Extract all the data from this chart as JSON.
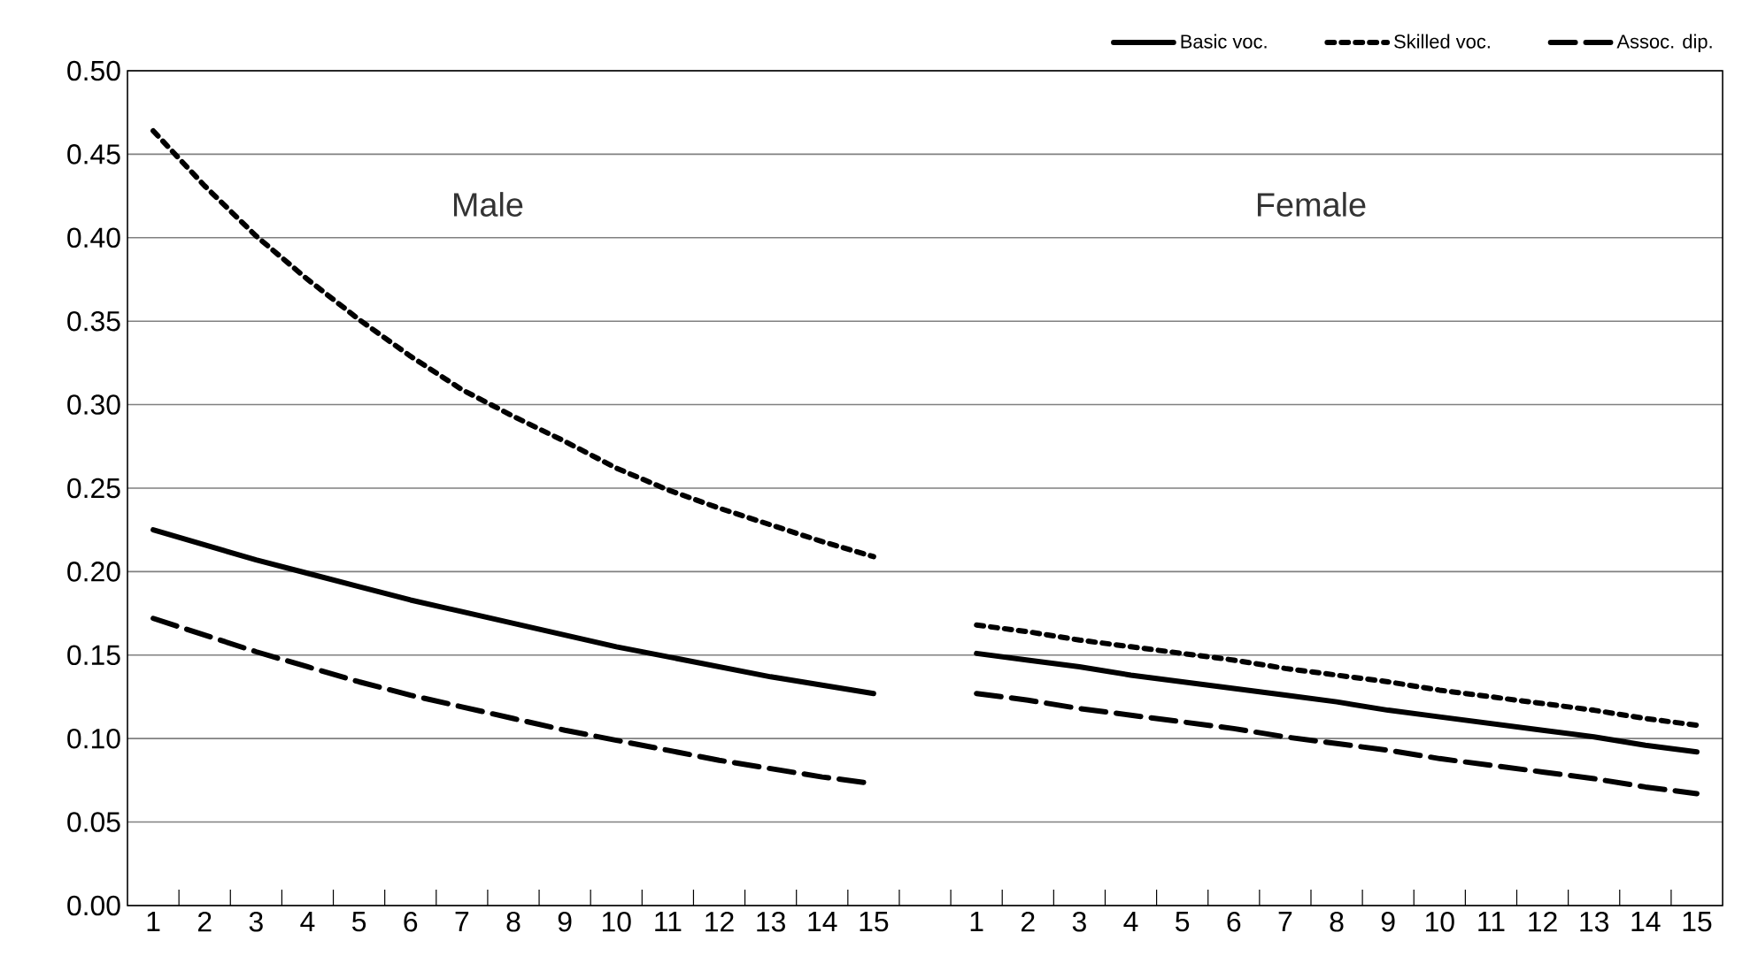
{
  "chart_data": {
    "type": "line",
    "categories": [
      "1",
      "2",
      "3",
      "4",
      "5",
      "6",
      "7",
      "8",
      "9",
      "10",
      "11",
      "12",
      "13",
      "14",
      "15",
      null,
      "1",
      "2",
      "3",
      "4",
      "5",
      "6",
      "7",
      "8",
      "9",
      "10",
      "11",
      "12",
      "13",
      "14",
      "15"
    ],
    "series": [
      {
        "name": "Basic voc.",
        "color": "#000000",
        "line_style": "solid",
        "values": [
          0.225,
          0.216,
          0.207,
          0.199,
          0.191,
          0.183,
          0.176,
          0.169,
          0.162,
          0.155,
          0.149,
          0.143,
          0.137,
          0.132,
          0.127,
          null,
          0.151,
          0.147,
          0.143,
          0.138,
          0.134,
          0.13,
          0.126,
          0.122,
          0.117,
          0.113,
          0.109,
          0.105,
          0.101,
          0.096,
          0.092
        ]
      },
      {
        "name": "Skilled voc.",
        "color": "#000000",
        "line_style": "dotted",
        "values": [
          0.464,
          0.431,
          0.401,
          0.375,
          0.351,
          0.329,
          0.309,
          0.293,
          0.278,
          0.262,
          0.249,
          0.238,
          0.228,
          0.218,
          0.209,
          null,
          0.168,
          0.164,
          0.159,
          0.155,
          0.151,
          0.147,
          0.142,
          0.138,
          0.134,
          0.129,
          0.125,
          0.121,
          0.117,
          0.112,
          0.108
        ]
      },
      {
        "name": "Assoc. dip.",
        "color": "#000000",
        "line_style": "dashed",
        "values": [
          0.172,
          0.162,
          0.152,
          0.143,
          0.134,
          0.126,
          0.119,
          0.112,
          0.105,
          0.099,
          0.093,
          0.087,
          0.082,
          0.077,
          0.073,
          null,
          0.127,
          0.123,
          0.118,
          0.114,
          0.11,
          0.106,
          0.101,
          0.097,
          0.093,
          0.088,
          0.084,
          0.08,
          0.076,
          0.071,
          0.067
        ]
      }
    ],
    "ylim": [
      0,
      0.5
    ],
    "yticks": [
      {
        "value": 0,
        "label": "0.00"
      },
      {
        "value": 0.05,
        "label": "0.05"
      },
      {
        "value": 0.1,
        "label": "0.10"
      },
      {
        "value": 0.15,
        "label": "0.15"
      },
      {
        "value": 0.2,
        "label": "0.20"
      },
      {
        "value": 0.25,
        "label": "0.25"
      },
      {
        "value": 0.3,
        "label": "0.30"
      },
      {
        "value": 0.35,
        "label": "0.35"
      },
      {
        "value": 0.4,
        "label": "0.40"
      },
      {
        "value": 0.45,
        "label": "0.45"
      },
      {
        "value": 0.5,
        "label": "0.50"
      }
    ],
    "grid": "y",
    "legend": "top",
    "marker": "none",
    "annotations": [
      "Male",
      "Female"
    ]
  }
}
